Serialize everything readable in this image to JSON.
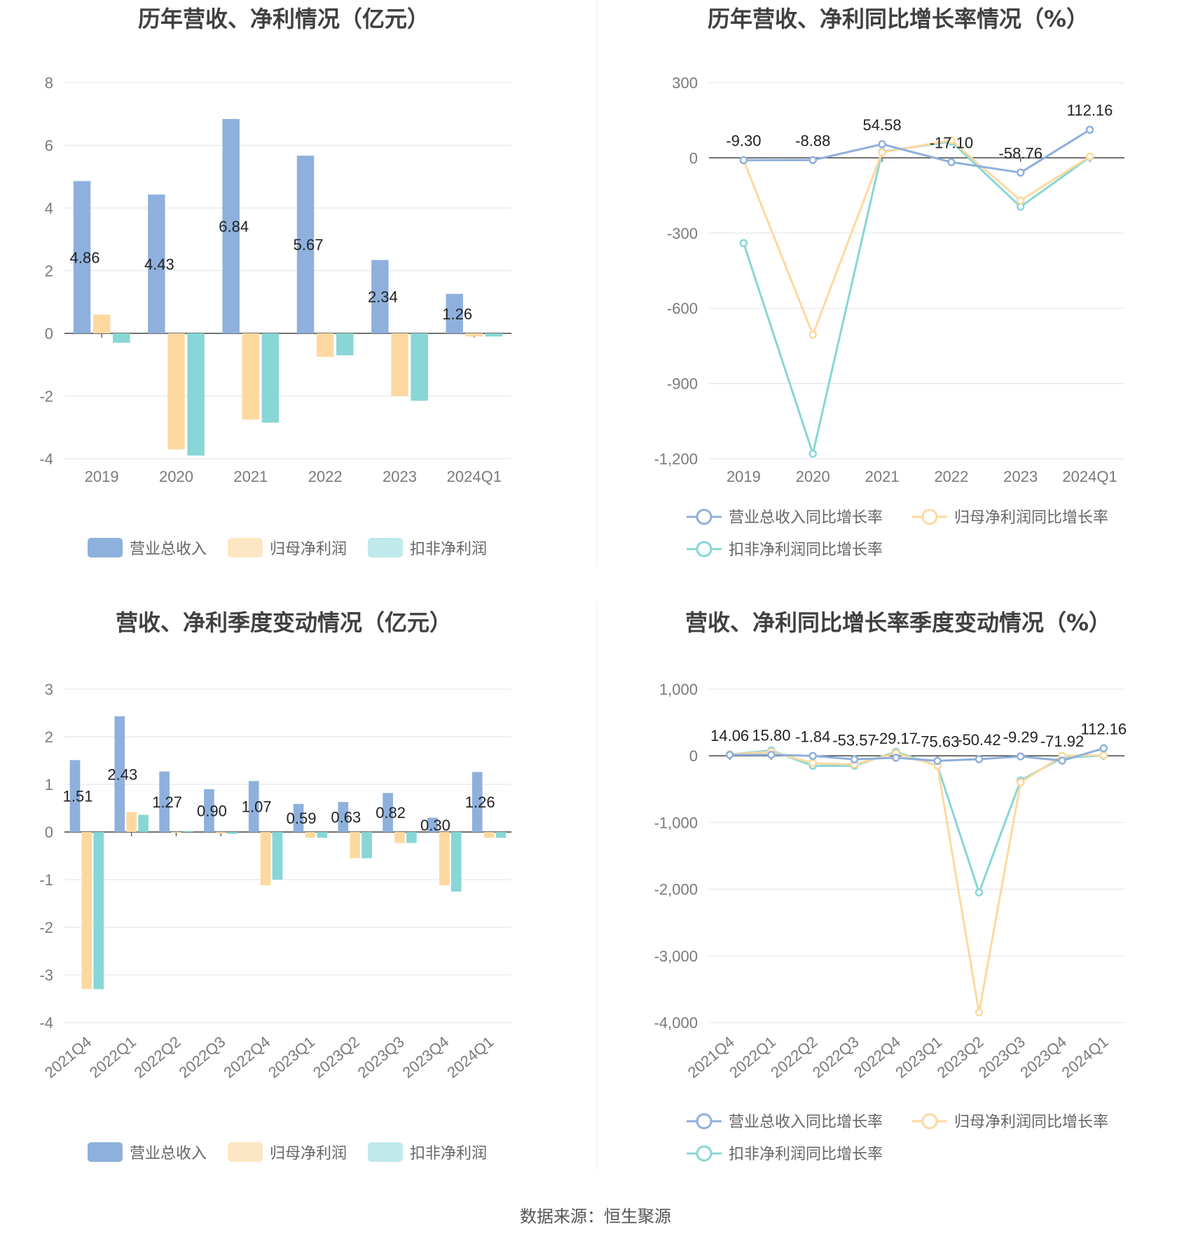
{
  "source_label": "数据来源：恒生聚源",
  "colors": {
    "revenue": "#8eb0dc",
    "net_profit": "#fdd9a0",
    "deducted_profit": "#88d6d6",
    "revenue_legend": "#8eb0dc",
    "net_profit_legend": "#fde6c4",
    "deducted_profit_legend": "#bfe9ea",
    "grid": "#e3e6ef",
    "axis": "#444444"
  },
  "chart_data": [
    {
      "id": "annual-amount",
      "type": "bar",
      "title": "历年营收、净利情况（亿元）",
      "categories": [
        "2019",
        "2020",
        "2021",
        "2022",
        "2023",
        "2024Q1"
      ],
      "ylim": [
        -4,
        8
      ],
      "yticks": [
        "-4",
        "-2",
        "0",
        "2",
        "4",
        "6",
        "8"
      ],
      "grid": true,
      "legend_position": "bottom",
      "series": [
        {
          "name": "营业总收入",
          "values": [
            4.86,
            4.43,
            6.84,
            5.67,
            2.34,
            1.26
          ],
          "labels": [
            "4.86",
            "4.43",
            "6.84",
            "5.67",
            "2.34",
            "1.26"
          ]
        },
        {
          "name": "归母净利润",
          "values": [
            0.6,
            -3.7,
            -2.75,
            -0.75,
            -2.0,
            -0.1
          ]
        },
        {
          "name": "扣非净利润",
          "values": [
            -0.3,
            -3.9,
            -2.85,
            -0.7,
            -2.15,
            -0.1
          ]
        }
      ]
    },
    {
      "id": "annual-growth",
      "type": "line",
      "title": "历年营收、净利同比增长率情况（%）",
      "categories": [
        "2019",
        "2020",
        "2021",
        "2022",
        "2023",
        "2024Q1"
      ],
      "ylim": [
        -1200,
        300
      ],
      "yticks": [
        "-1,200",
        "-900",
        "-600",
        "-300",
        "0",
        "300"
      ],
      "grid": true,
      "legend_position": "bottom",
      "series": [
        {
          "name": "营业总收入同比增长率",
          "values": [
            -9.3,
            -8.88,
            54.58,
            -17.1,
            -58.76,
            112.16
          ],
          "labels": [
            "-9.30",
            "-8.88",
            "54.58",
            "-17.10",
            "-58.76",
            "112.16"
          ]
        },
        {
          "name": "归母净利润同比增长率",
          "values": [
            -10,
            -705,
            22,
            70,
            -170,
            5
          ]
        },
        {
          "name": "扣非净利润同比增长率",
          "values": [
            -340,
            -1180,
            25,
            65,
            -195,
            3
          ]
        }
      ]
    },
    {
      "id": "quarterly-amount",
      "type": "bar",
      "title": "营收、净利季度变动情况（亿元）",
      "categories": [
        "2021Q4",
        "2022Q1",
        "2022Q2",
        "2022Q3",
        "2022Q4",
        "2023Q1",
        "2023Q2",
        "2023Q3",
        "2023Q4",
        "2024Q1"
      ],
      "ylim": [
        -4,
        3
      ],
      "yticks": [
        "-4",
        "-3",
        "-2",
        "-1",
        "0",
        "1",
        "2",
        "3"
      ],
      "grid": true,
      "legend_position": "bottom",
      "series": [
        {
          "name": "营业总收入",
          "values": [
            1.51,
            2.43,
            1.27,
            0.9,
            1.07,
            0.59,
            0.63,
            0.82,
            0.3,
            1.26
          ],
          "labels": [
            "1.51",
            "2.43",
            "1.27",
            "0.90",
            "1.07",
            "0.59",
            "0.63",
            "0.82",
            "0.30",
            "1.26"
          ]
        },
        {
          "name": "归母净利润",
          "values": [
            -3.3,
            0.42,
            0.0,
            -0.03,
            -1.12,
            -0.12,
            -0.55,
            -0.23,
            -1.12,
            -0.12
          ]
        },
        {
          "name": "扣非净利润",
          "values": [
            -3.3,
            0.36,
            0.02,
            -0.04,
            -1.0,
            -0.12,
            -0.55,
            -0.23,
            -1.25,
            -0.12
          ]
        }
      ]
    },
    {
      "id": "quarterly-growth",
      "type": "line",
      "title": "营收、净利同比增长率季度变动情况（%）",
      "categories": [
        "2021Q4",
        "2022Q1",
        "2022Q2",
        "2022Q3",
        "2022Q4",
        "2023Q1",
        "2023Q2",
        "2023Q3",
        "2023Q4",
        "2024Q1"
      ],
      "ylim": [
        -4000,
        1000
      ],
      "yticks": [
        "-4,000",
        "-3,000",
        "-2,000",
        "-1,000",
        "0",
        "1,000"
      ],
      "grid": true,
      "legend_position": "bottom",
      "series": [
        {
          "name": "营业总收入同比增长率",
          "values": [
            14.06,
            15.8,
            -1.84,
            -53.57,
            -29.17,
            -75.63,
            -50.42,
            -9.29,
            -71.92,
            112.16
          ],
          "labels": [
            "14.06",
            "15.80",
            "-1.84",
            "-53.57",
            "-29.17",
            "-75.63",
            "-50.42",
            "-9.29",
            "-71.92",
            "112.16"
          ]
        },
        {
          "name": "归母净利润同比增长率",
          "values": [
            20,
            60,
            -110,
            -130,
            40,
            -150,
            -3850,
            -400,
            0,
            10
          ]
        },
        {
          "name": "扣非净利润同比增长率",
          "values": [
            20,
            80,
            -150,
            -150,
            60,
            -150,
            -2050,
            -370,
            -30,
            5
          ]
        }
      ]
    }
  ]
}
